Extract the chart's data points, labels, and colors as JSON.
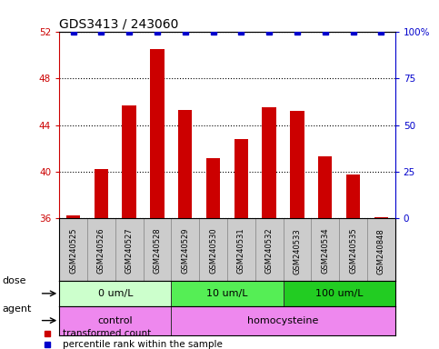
{
  "title": "GDS3413 / 243060",
  "samples": [
    "GSM240525",
    "GSM240526",
    "GSM240527",
    "GSM240528",
    "GSM240529",
    "GSM240530",
    "GSM240531",
    "GSM240532",
    "GSM240533",
    "GSM240534",
    "GSM240535",
    "GSM240848"
  ],
  "bar_values": [
    36.3,
    40.2,
    45.7,
    50.5,
    45.3,
    41.2,
    42.8,
    45.5,
    45.2,
    41.3,
    39.8,
    36.1
  ],
  "percentile_values": [
    100,
    100,
    100,
    100,
    100,
    100,
    100,
    100,
    100,
    100,
    100,
    100
  ],
  "bar_color": "#cc0000",
  "percentile_color": "#0000cc",
  "ylim_left": [
    36,
    52
  ],
  "ylim_right": [
    0,
    100
  ],
  "yticks_left": [
    36,
    40,
    44,
    48,
    52
  ],
  "yticks_right": [
    0,
    25,
    50,
    75,
    100
  ],
  "dose_groups": [
    {
      "label": "0 um/L",
      "start": 0,
      "end": 4,
      "color": "#ccffcc"
    },
    {
      "label": "10 um/L",
      "start": 4,
      "end": 8,
      "color": "#55ee55"
    },
    {
      "label": "100 um/L",
      "start": 8,
      "end": 12,
      "color": "#22cc22"
    }
  ],
  "agent_groups": [
    {
      "label": "control",
      "start": 0,
      "end": 4,
      "color": "#ee88ee"
    },
    {
      "label": "homocysteine",
      "start": 4,
      "end": 12,
      "color": "#ee88ee"
    }
  ],
  "dose_label": "dose",
  "agent_label": "agent",
  "legend_items": [
    {
      "label": "transformed count",
      "color": "#cc0000"
    },
    {
      "label": "percentile rank within the sample",
      "color": "#0000cc"
    }
  ],
  "background_color": "#ffffff",
  "tick_label_color_left": "#cc0000",
  "tick_label_color_right": "#0000cc",
  "xlabel_bg": "#cccccc"
}
